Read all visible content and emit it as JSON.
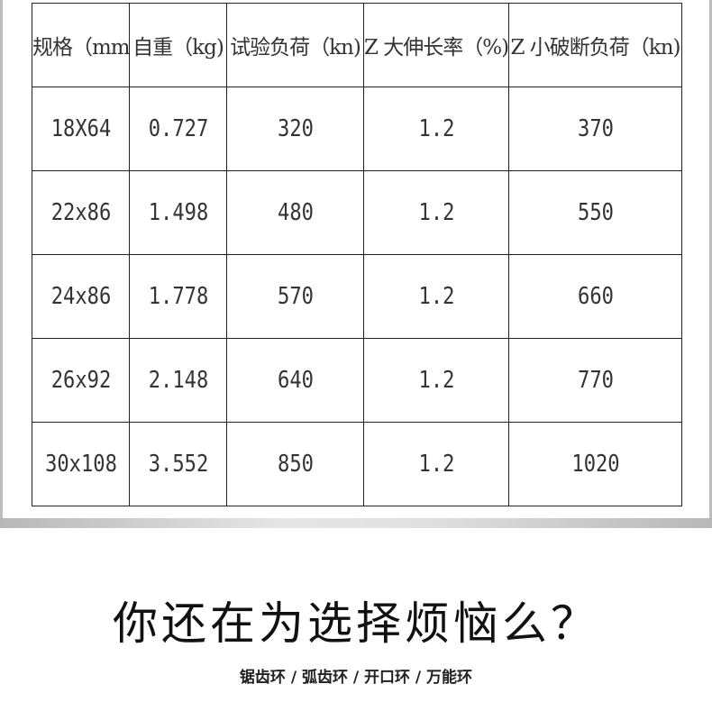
{
  "table": {
    "headers": [
      "规格（mm)",
      "自重（kg)",
      "试验负荷（kn)",
      "Z 大伸长率（%)",
      "Z 小破断负荷（kn)"
    ],
    "rows": [
      [
        "18X64",
        "0.727",
        "320",
        "1.2",
        "370"
      ],
      [
        "22x86",
        "1.498",
        "480",
        "1.2",
        "550"
      ],
      [
        "24x86",
        "1.778",
        "570",
        "1.2",
        "660"
      ],
      [
        "26x92",
        "2.148",
        "640",
        "1.2",
        "770"
      ],
      [
        "30x108",
        "3.552",
        "850",
        "1.2",
        "1020"
      ]
    ]
  },
  "title": "你还在为选择烦恼么？",
  "subtitle": "锯齿环 / 弧齿环 / 开口环 / 万能环"
}
